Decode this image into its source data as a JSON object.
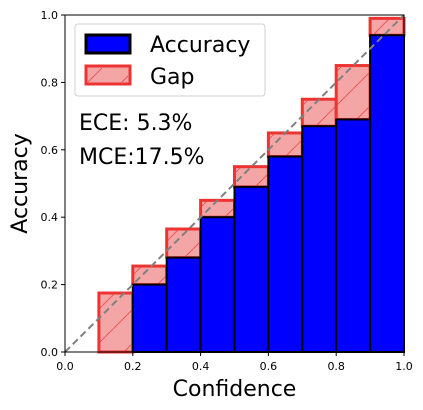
{
  "chart_data": {
    "type": "bar",
    "title": "",
    "xlabel": "Confidence",
    "ylabel": "Accuracy",
    "xlim": [
      0.0,
      1.0
    ],
    "ylim": [
      0.0,
      1.0
    ],
    "xticks": [
      "0.0",
      "0.2",
      "0.4",
      "0.6",
      "0.8",
      "1.0"
    ],
    "yticks": [
      "0.0",
      "0.2",
      "0.4",
      "0.6",
      "0.8",
      "1.0"
    ],
    "grid": false,
    "legend_position": "top-left",
    "bin_edges": [
      0.0,
      0.1,
      0.2,
      0.3,
      0.4,
      0.5,
      0.6,
      0.7,
      0.8,
      0.9,
      1.0
    ],
    "series": [
      {
        "name": "Accuracy",
        "color": "#0000ff",
        "edge_color": "#000000",
        "values": [
          0.0,
          0.0,
          0.2,
          0.28,
          0.4,
          0.49,
          0.58,
          0.67,
          0.69,
          0.94
        ]
      },
      {
        "name": "Gap",
        "color": "#f4a6a6",
        "edge_color": "#ee3333",
        "values": [
          0.0,
          0.175,
          0.255,
          0.365,
          0.45,
          0.55,
          0.65,
          0.75,
          0.85,
          0.99
        ]
      }
    ],
    "diagonal": {
      "style": "dashed",
      "color": "#808080"
    },
    "annotations": [
      "ECE: 5.3%",
      "MCE:17.5%"
    ]
  }
}
